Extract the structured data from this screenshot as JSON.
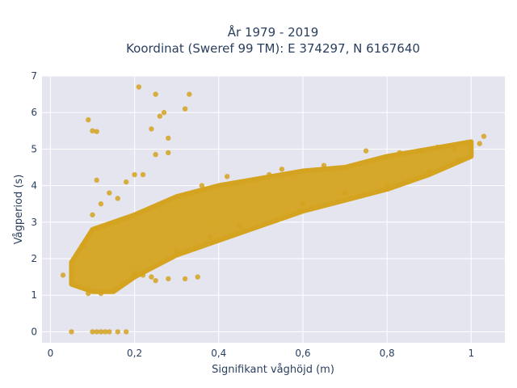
{
  "chart_data": {
    "type": "scatter",
    "title_lines": [
      "År 1979 - 2019",
      "Koordinat (Sweref 99 TM): E 374297, N 6167640"
    ],
    "xlabel": "Signifikant våghöjd (m)",
    "ylabel": "Vågperiod (s)",
    "xlim": [
      -0.02,
      1.08
    ],
    "ylim": [
      -0.3,
      7.0
    ],
    "x_ticks": [
      0,
      0.2,
      0.4,
      0.6,
      0.8,
      1.0
    ],
    "x_tick_labels": [
      "0",
      "0,2",
      "0,4",
      "0,6",
      "0,8",
      "1"
    ],
    "y_ticks": [
      0,
      1,
      2,
      3,
      4,
      5,
      6,
      7
    ],
    "y_tick_labels": [
      "0",
      "1",
      "2",
      "3",
      "4",
      "5",
      "6",
      "7"
    ],
    "grid": true,
    "background": "#e5e5f0",
    "marker_color": "#d4a31f",
    "dense_band": {
      "x": [
        0.05,
        0.1,
        0.15,
        0.2,
        0.3,
        0.4,
        0.5,
        0.6,
        0.7,
        0.8,
        0.9,
        1.0
      ],
      "y_lower": [
        1.3,
        1.1,
        1.1,
        1.5,
        2.1,
        2.5,
        2.9,
        3.3,
        3.6,
        3.9,
        4.3,
        4.8
      ],
      "y_upper": [
        1.9,
        2.8,
        3.0,
        3.2,
        3.7,
        4.0,
        4.2,
        4.4,
        4.5,
        4.8,
        5.0,
        5.2
      ]
    },
    "points": [
      [
        0.03,
        1.55
      ],
      [
        0.05,
        0.0
      ],
      [
        0.09,
        5.8
      ],
      [
        0.1,
        5.5
      ],
      [
        0.11,
        5.48
      ],
      [
        0.1,
        0.0
      ],
      [
        0.11,
        0.0
      ],
      [
        0.12,
        0.0
      ],
      [
        0.13,
        0.0
      ],
      [
        0.14,
        0.0
      ],
      [
        0.16,
        0.0
      ],
      [
        0.18,
        0.0
      ],
      [
        0.21,
        6.7
      ],
      [
        0.25,
        6.5
      ],
      [
        0.27,
        6.0
      ],
      [
        0.26,
        5.9
      ],
      [
        0.24,
        5.55
      ],
      [
        0.28,
        5.3
      ],
      [
        0.32,
        6.1
      ],
      [
        0.33,
        6.5
      ],
      [
        0.25,
        4.85
      ],
      [
        0.28,
        4.9
      ],
      [
        0.2,
        4.3
      ],
      [
        0.22,
        4.3
      ],
      [
        0.08,
        2.35
      ],
      [
        0.11,
        4.15
      ],
      [
        0.18,
        4.1
      ],
      [
        0.14,
        3.8
      ],
      [
        0.16,
        3.65
      ],
      [
        0.09,
        1.05
      ],
      [
        0.12,
        1.05
      ],
      [
        0.25,
        1.4
      ],
      [
        0.28,
        1.45
      ],
      [
        0.32,
        1.45
      ],
      [
        0.35,
        1.5
      ],
      [
        0.22,
        1.55
      ],
      [
        0.24,
        1.5
      ],
      [
        0.2,
        1.6
      ],
      [
        0.12,
        3.5
      ],
      [
        0.1,
        3.2
      ],
      [
        0.52,
        4.3
      ],
      [
        0.75,
        4.95
      ],
      [
        0.83,
        4.9
      ],
      [
        0.92,
        5.05
      ],
      [
        1.03,
        5.35
      ],
      [
        1.02,
        5.15
      ],
      [
        0.96,
        5.0
      ],
      [
        0.88,
        4.95
      ],
      [
        0.3,
        2.2
      ],
      [
        0.38,
        2.6
      ],
      [
        0.45,
        2.9
      ],
      [
        0.6,
        3.5
      ],
      [
        0.7,
        3.8
      ],
      [
        0.8,
        4.0
      ],
      [
        0.9,
        4.4
      ],
      [
        0.97,
        4.7
      ],
      [
        0.42,
        4.25
      ],
      [
        0.55,
        4.45
      ],
      [
        0.65,
        4.55
      ],
      [
        0.36,
        4.0
      ]
    ]
  }
}
